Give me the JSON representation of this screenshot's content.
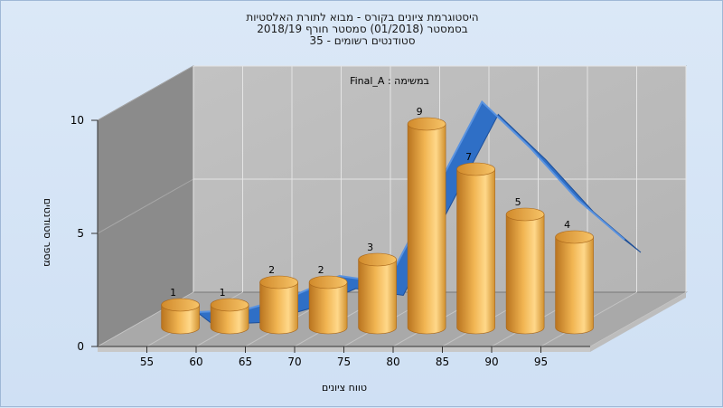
{
  "header": {
    "line1": "היסטוגרמת ציונים בקורס - מבוא לתורת האלסטיות",
    "line2": "בסמסטר  (01/2018)  סמסטר חורף 2018/19",
    "line3": "סטודנטים רשומים - 35"
  },
  "chart_data": {
    "type": "bar",
    "title": "היסטוגרמת ציונים בקורס - מבוא לתורת האלסטיות",
    "annotation": "במשימה : Final_A",
    "xlabel": "טווח ציונים",
    "ylabel": "מספר סטודנטים",
    "x_ticks": [
      "55",
      "60",
      "65",
      "70",
      "75",
      "80",
      "85",
      "90",
      "95"
    ],
    "categories": [
      "55",
      "60",
      "65",
      "70",
      "75",
      "80",
      "85",
      "90",
      "95"
    ],
    "values": [
      1,
      1,
      2,
      2,
      3,
      9,
      7,
      5,
      4
    ],
    "y_ticks": [
      0,
      5,
      10
    ],
    "ylim": [
      0,
      10
    ],
    "trend_series_y": [
      0.2,
      0.3,
      0.9,
      1.8,
      1.5,
      5.5,
      9.5,
      7.5,
      5.2,
      3.4
    ],
    "colors": {
      "bar": "#e6a43d",
      "ribbon": "#2f6fc6"
    },
    "grid": true
  }
}
